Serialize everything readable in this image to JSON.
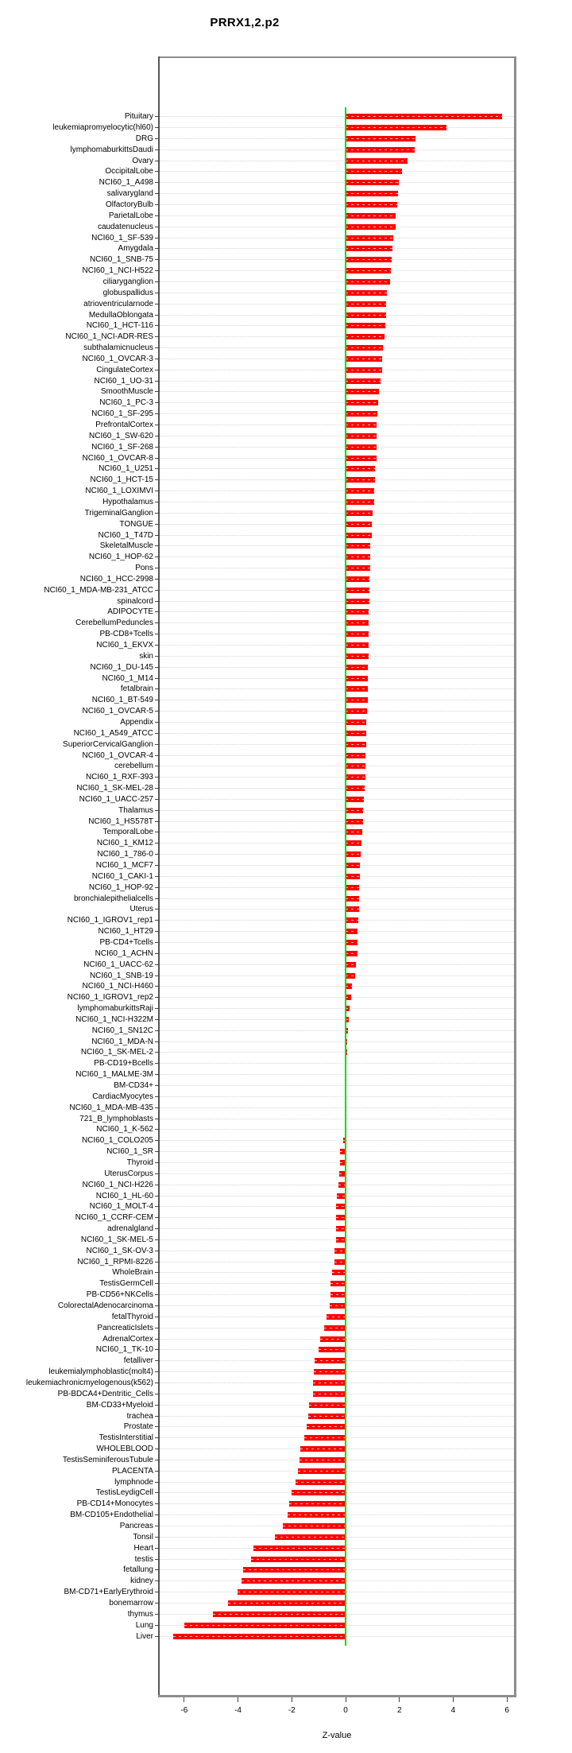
{
  "title": "PRRX1,2.p2",
  "chart_data": {
    "type": "bar",
    "orientation": "horizontal",
    "title": "PRRX1,2.p2",
    "xlabel": "Z-value",
    "ylabel": "",
    "xlim": [
      -6.91,
      6.26
    ],
    "xticks": [
      -6,
      -4,
      -2,
      0,
      2,
      4,
      6
    ],
    "grid": "dotted horizontal line per category",
    "legend": "none",
    "bar_color": "#ff0000",
    "zero_line_color": "#00dd00",
    "categories": [
      "Pituitary",
      "leukemiapromyelocytic(hl60)",
      "DRG",
      "lymphomaburkittsDaudi",
      "Ovary",
      "OccipitalLobe",
      "NCI60_1_A498",
      "salivarygland",
      "OlfactoryBulb",
      "ParietalLobe",
      "caudatenucleus",
      "NCI60_1_SF-539",
      "Amygdala",
      "NCI60_1_SNB-75",
      "NCI60_1_NCI-H522",
      "ciliaryganglion",
      "globuspallidus",
      "atrioventricularnode",
      "MedullaOblongata",
      "NCI60_1_HCT-116",
      "NCI60_1_NCI-ADR-RES",
      "subthalamicnucleus",
      "NCI60_1_OVCAR-3",
      "CingulateCortex",
      "NCI60_1_UO-31",
      "SmoothMuscle",
      "NCI60_1_PC-3",
      "NCI60_1_SF-295",
      "PrefrontalCortex",
      "NCI60_1_SW-620",
      "NCI60_1_SF-268",
      "NCI60_1_OVCAR-8",
      "NCI60_1_U251",
      "NCI60_1_HCT-15",
      "NCI60_1_LOXIMVI",
      "Hypothalamus",
      "TrigeminalGanglion",
      "TONGUE",
      "NCI60_1_T47D",
      "SkeletalMuscle",
      "NCI60_1_HOP-62",
      "Pons",
      "NCI60_1_HCC-2998",
      "NCI60_1_MDA-MB-231_ATCC",
      "spinalcord",
      "ADIPOCYTE",
      "CerebellumPeduncles",
      "PB-CD8+Tcells",
      "NCI60_1_EKVX",
      "skin",
      "NCI60_1_DU-145",
      "NCI60_1_M14",
      "fetalbrain",
      "NCI60_1_BT-549",
      "NCI60_1_OVCAR-5",
      "Appendix",
      "NCI60_1_A549_ATCC",
      "SuperiorCervicalGanglion",
      "NCI60_1_OVCAR-4",
      "cerebellum",
      "NCI60_1_RXF-393",
      "NCI60_1_SK-MEL-28",
      "NCI60_1_UACC-257",
      "Thalamus",
      "NCI60_1_HS578T",
      "TemporalLobe",
      "NCI60_1_KM12",
      "NCI60_1_786-0",
      "NCI60_1_MCF7",
      "NCI60_1_CAKI-1",
      "NCI60_1_HOP-92",
      "bronchialepithelialcells",
      "Uterus",
      "NCI60_1_IGROV1_rep1",
      "NCI60_1_HT29",
      "PB-CD4+Tcells",
      "NCI60_1_ACHN",
      "NCI60_1_UACC-62",
      "NCI60_1_SNB-19",
      "NCI60_1_NCI-H460",
      "NCI60_1_IGROV1_rep2",
      "lymphomaburkittsRaji",
      "NCI60_1_NCI-H322M",
      "NCI60_1_SN12C",
      "NCI60_1_MDA-N",
      "NCI60_1_SK-MEL-2",
      "PB-CD19+Bcells",
      "NCI60_1_MALME-3M",
      "BM-CD34+",
      "CardiacMyocytes",
      "NCI60_1_MDA-MB-435",
      "721_B_lymphoblasts",
      "NCI60_1_K-562",
      "NCI60_1_COLO205",
      "NCI60_1_SR",
      "Thyroid",
      "UterusCorpus",
      "NCI60_1_NCI-H226",
      "NCI60_1_HL-60",
      "NCI60_1_MOLT-4",
      "NCI60_1_CCRF-CEM",
      "adrenalgland",
      "NCI60_1_SK-MEL-5",
      "NCI60_1_SK-OV-3",
      "NCI60_1_RPMI-8226",
      "WholeBrain",
      "TestisGermCell",
      "PB-CD56+NKCells",
      "ColorectalAdenocarcinoma",
      "fetalThyroid",
      "PancreaticIslets",
      "AdrenalCortex",
      "NCI60_1_TK-10",
      "fetalliver",
      "leukemialymphoblastic(molt4)",
      "leukemiachronicmyelogenous(k562)",
      "PB-BDCA4+Dentritic_Cells",
      "BM-CD33+Myeloid",
      "trachea",
      "Prostate",
      "TestisInterstitial",
      "WHOLEBLOOD",
      "TestisSeminiferousTubule",
      "PLACENTA",
      "lymphnode",
      "TestisLeydigCell",
      "PB-CD14+Monocytes",
      "BM-CD105+Endothelial",
      "Pancreas",
      "Tonsil",
      "Heart",
      "testis",
      "fetallung",
      "kidney",
      "BM-CD71+EarlyErythroid",
      "bonemarrow",
      "thymus",
      "Lung",
      "Liver"
    ],
    "values": [
      5.81,
      3.76,
      2.59,
      2.58,
      2.3,
      2.09,
      1.98,
      1.94,
      1.92,
      1.87,
      1.86,
      1.76,
      1.74,
      1.7,
      1.68,
      1.65,
      1.53,
      1.52,
      1.5,
      1.49,
      1.44,
      1.39,
      1.36,
      1.35,
      1.29,
      1.23,
      1.21,
      1.17,
      1.16,
      1.16,
      1.14,
      1.14,
      1.1,
      1.1,
      1.06,
      1.05,
      1.01,
      0.97,
      0.97,
      0.92,
      0.91,
      0.91,
      0.9,
      0.88,
      0.88,
      0.87,
      0.86,
      0.86,
      0.85,
      0.85,
      0.83,
      0.83,
      0.83,
      0.82,
      0.79,
      0.78,
      0.77,
      0.76,
      0.75,
      0.75,
      0.74,
      0.72,
      0.67,
      0.66,
      0.65,
      0.62,
      0.6,
      0.55,
      0.53,
      0.52,
      0.51,
      0.5,
      0.49,
      0.46,
      0.45,
      0.45,
      0.44,
      0.37,
      0.36,
      0.25,
      0.21,
      0.16,
      0.11,
      0.08,
      0.07,
      0.05,
      0.04,
      0.03,
      0.02,
      0.01,
      0.0,
      -0.01,
      -0.03,
      -0.1,
      -0.22,
      -0.22,
      -0.24,
      -0.27,
      -0.32,
      -0.34,
      -0.34,
      -0.35,
      -0.36,
      -0.41,
      -0.42,
      -0.49,
      -0.56,
      -0.57,
      -0.58,
      -0.71,
      -0.81,
      -0.95,
      -1.0,
      -1.14,
      -1.18,
      -1.2,
      -1.22,
      -1.35,
      -1.38,
      -1.46,
      -1.54,
      -1.69,
      -1.72,
      -1.78,
      -1.85,
      -2.02,
      -2.1,
      -2.15,
      -2.33,
      -2.63,
      -3.43,
      -3.52,
      -3.8,
      -3.87,
      -4.02,
      -4.37,
      -4.92,
      -5.98,
      -6.42
    ]
  },
  "colors": {
    "background": "#ffffff",
    "bar": "#ff0000",
    "bar_grid_overlay": "rgba(255,255,255,0.72)",
    "zero_line": "#00dd00",
    "grid_dotted": "#d6d6d6",
    "frame": "#8d8d8d",
    "axis_text": "#000000"
  }
}
